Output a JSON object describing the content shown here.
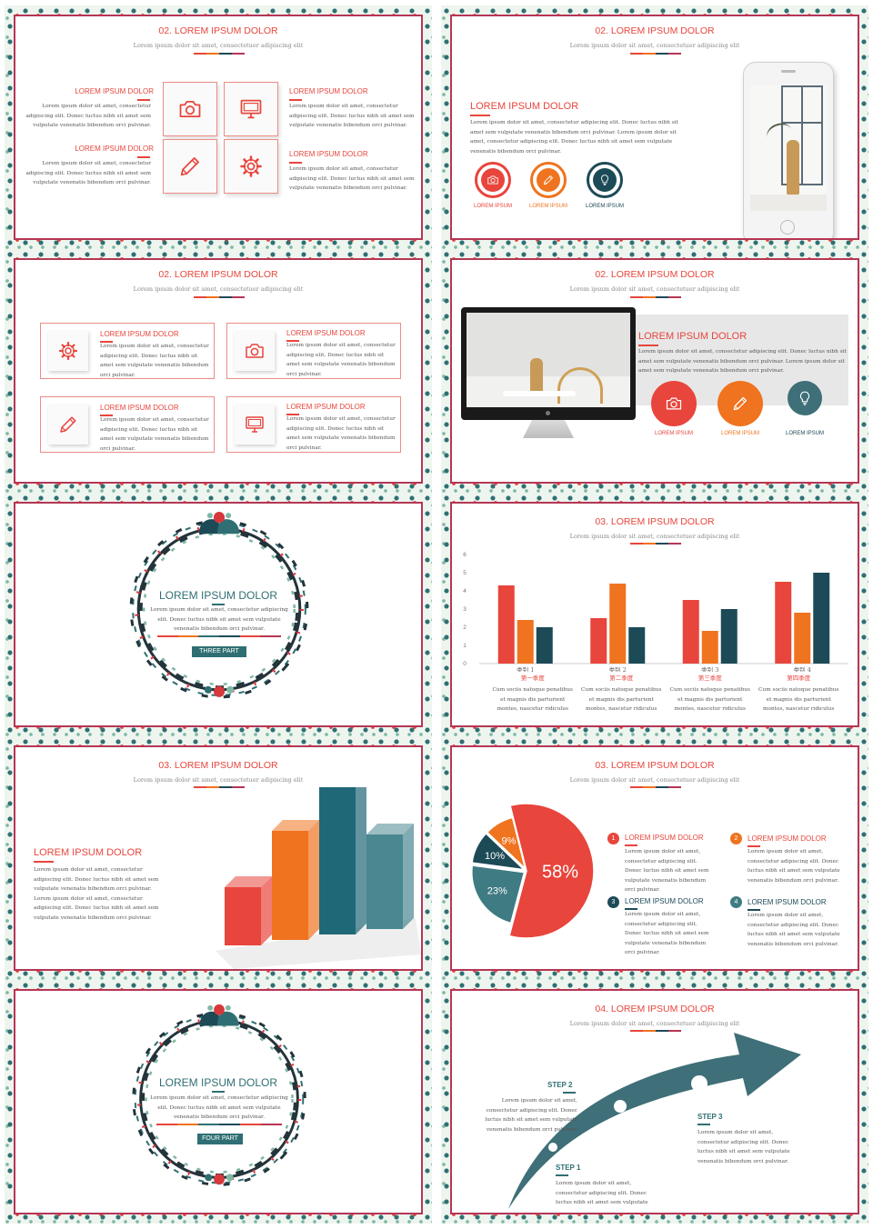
{
  "colors": {
    "red": "#e8453c",
    "orange": "#f0731f",
    "teal": "#2f6f73",
    "navy": "#1d4a57",
    "border": "#b53655"
  },
  "lorem_body": "Lorem ipsum dolor sit amet, consectetur adipiscing elit. Donec luctus nibh sit amet sem vulputate venenatis bibendum orci pulvinar.",
  "slide1": {
    "title": "02. LOREM IPSUM DOLOR",
    "subtitle": "Lorem ipsum dolor sit amet, consectetuer adipiscing elit",
    "items": [
      {
        "heading": "LOREM IPSUM DOLOR",
        "icon": "camera-icon"
      },
      {
        "heading": "LOREM IPSUM DOLOR",
        "icon": "monitor-icon"
      },
      {
        "heading": "LOREM IPSUM DOLOR",
        "icon": "pencil-icon"
      },
      {
        "heading": "LOREM IPSUM DOLOR",
        "icon": "gear-icon"
      }
    ]
  },
  "slide2": {
    "title": "02. LOREM IPSUM DOLOR",
    "subtitle": "Lorem ipsum dolor sit amet, consectetuer adipiscing elit",
    "heading": "LOREM IPSUM DOLOR",
    "body": "Lorem ipsum dolor sit amet, consectetur adipiscing elit. Donec luctus nibh sit amet sem vulputate venenatis bibendum orci pulvinar. Lorem ipsum dolor sit amet, consectetur adipiscing elit. Donec luctus nibh sit amet sem vulputate venenatis bibendum orci pulvinar.",
    "icons": [
      {
        "label": "LOREM IPSUM",
        "icon": "camera-icon"
      },
      {
        "label": "LOREM IPSUM",
        "icon": "pencil-icon"
      },
      {
        "label": "LOREM IPSUM",
        "icon": "lightbulb-icon"
      }
    ]
  },
  "slide3": {
    "title": "02. LOREM IPSUM DOLOR",
    "subtitle": "Lorem ipsum dolor sit amet, consectetuer adipiscing elit",
    "items": [
      {
        "heading": "LOREM IPSUM DOLOR",
        "icon": "gear-icon"
      },
      {
        "heading": "LOREM IPSUM DOLOR",
        "icon": "camera-icon"
      },
      {
        "heading": "LOREM IPSUM DOLOR",
        "icon": "pencil-icon"
      },
      {
        "heading": "LOREM IPSUM DOLOR",
        "icon": "monitor-icon"
      }
    ]
  },
  "slide4": {
    "title": "02. LOREM IPSUM DOLOR",
    "subtitle": "Lorem ipsum dolor sit amet, consectetuer adipiscing elit",
    "heading": "LOREM IPSUM DOLOR",
    "body": "Lorem ipsum dolor sit amet, consectetur adipiscing elit. Donec luctus nibh sit amet sem vulputate venenatis bibendum orci pulvinar. Lorem ipsum dolor sit amet sem vulputate venenatis bibendum orci pulvinar.",
    "icons": [
      {
        "label": "LOREM IPSUM",
        "icon": "camera-icon"
      },
      {
        "label": "LOREM IPSUM",
        "icon": "pencil-icon"
      },
      {
        "label": "LOREM IPSUM",
        "icon": "lightbulb-icon"
      }
    ]
  },
  "slide5": {
    "title": "LOREM IPSUM DOLOR",
    "body": "Lorem ipsum dolor sit amet, consectetur adipiscing elit. Donec luctus nibh sit amet sem vulputate venenatis bibendum orci pulvinar.",
    "button": "THREE PART"
  },
  "slide6": {
    "title": "03. LOREM IPSUM DOLOR",
    "subtitle": "Lorem ipsum dolor sit amet, consectetuer adipiscing elit",
    "quarters": [
      "第一季度",
      "第二季度",
      "第三季度",
      "第四季度"
    ],
    "caption": "Cum sociis natoque penatibus et magnis dis parturient montes, nascetur ridiculus"
  },
  "slide7": {
    "title": "03. LOREM IPSUM DOLOR",
    "subtitle": "Lorem ipsum dolor sit amet, consectetuer adipiscing elit",
    "heading": "LOREM IPSUM DOLOR",
    "body": "Lorem ipsum dolor sit amet, consectetur adipiscing elit. Donec luctus nibh sit amet sem vulputate venenatis bibendum orci pulvinar. Lorem ipsum dolor sit amet, consectetur adipiscing elit. Donec luctus nibh sit amet sem vulputate venenatis bibendum orci pulvinar."
  },
  "slide8": {
    "title": "03. LOREM IPSUM DOLOR",
    "subtitle": "Lorem ipsum dolor sit amet, consectetuer adipiscing elit",
    "items": [
      {
        "num": "1",
        "heading": "LOREM IPSUM DOLOR"
      },
      {
        "num": "2",
        "heading": "LOREM IPSUM DOLOR"
      },
      {
        "num": "3",
        "heading": "LOREM IPSUM DOLOR"
      },
      {
        "num": "4",
        "heading": "LOREM IPSUM DOLOR"
      }
    ],
    "body": "Lorem ipsum dolor sit amet, consectetur adipiscing elit. Donec luctus nibh sit amet sem vulputate venenatis bibendum orci pulvinar."
  },
  "slide9": {
    "title": "LOREM IPSUM DOLOR",
    "body": "Lorem ipsum dolor sit amet, consectetur adipiscing elit. Donec luctus nibh sit amet sem vulputate venenatis bibendum orci pulvinar.",
    "button": "FOUR PART"
  },
  "slide10": {
    "title": "04. LOREM IPSUM DOLOR",
    "subtitle": "Lorem ipsum dolor sit amet, consectetuer adipiscing elit",
    "steps": [
      {
        "label": "STEP 2",
        "body": "Lorem ipsum dolor sit amet, consectetur adipiscing elit. Donec luctus nibh sit amet sem vulputate venenatis bibendum orci pulvinar."
      },
      {
        "label": "STEP 3",
        "body": "Lorem ipsum dolor sit amet, consectetur adipiscing elit. Donec luctus nibh sit amet sem vulputate venenatis bibendum orci pulvinar."
      },
      {
        "label": "STEP 1",
        "body": "Lorem ipsum dolor sit amet, consectetur adipiscing elit. Donec luctus nibh sit amet sem vulputate venenatis bibendum orci pulvinar."
      }
    ]
  },
  "chart_data": [
    {
      "type": "bar",
      "categories": [
        "类别 1",
        "类别 2",
        "类别 3",
        "类别 4"
      ],
      "series": [
        {
          "values": [
            4.3,
            2.5,
            3.5,
            4.5
          ],
          "color": "#e8453c"
        },
        {
          "values": [
            2.4,
            4.4,
            1.8,
            2.8
          ],
          "color": "#f0731f"
        },
        {
          "values": [
            2.0,
            2.0,
            3.0,
            5.0
          ],
          "color": "#1d4a57"
        }
      ],
      "ylim": [
        0,
        6
      ],
      "yticks": [
        "0",
        "1",
        "2",
        "3",
        "4",
        "5",
        "6"
      ]
    },
    {
      "type": "bar",
      "values": [
        1.6,
        3.0,
        4.3,
        2.6
      ],
      "colors": [
        "#e8453c",
        "#f0731f",
        "#1f6878",
        "#4a8891"
      ]
    },
    {
      "type": "pie",
      "slices": [
        {
          "label": "58%",
          "value": 58,
          "color": "#e8453c"
        },
        {
          "label": "23%",
          "value": 23,
          "color": "#3f7b82"
        },
        {
          "label": "10%",
          "value": 10,
          "color": "#1d4a57"
        },
        {
          "label": "9%",
          "value": 9,
          "color": "#f0731f"
        }
      ]
    }
  ]
}
